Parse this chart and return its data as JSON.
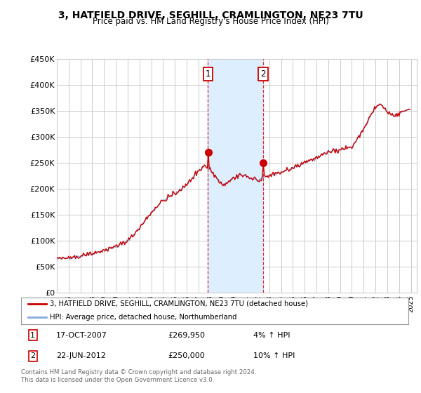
{
  "title": "3, HATFIELD DRIVE, SEGHILL, CRAMLINGTON, NE23 7TU",
  "subtitle": "Price paid vs. HM Land Registry's House Price Index (HPI)",
  "ylabel_ticks": [
    "£0",
    "£50K",
    "£100K",
    "£150K",
    "£200K",
    "£250K",
    "£300K",
    "£350K",
    "£400K",
    "£450K"
  ],
  "ylim": [
    0,
    450000
  ],
  "xlim_start": 1995.0,
  "xlim_end": 2025.5,
  "sale1_x": 2007.8,
  "sale1_y": 269950,
  "sale1_label": "17-OCT-2007",
  "sale1_price": "£269,950",
  "sale1_hpi": "4% ↑ HPI",
  "sale2_x": 2012.47,
  "sale2_y": 250000,
  "sale2_label": "22-JUN-2012",
  "sale2_price": "£250,000",
  "sale2_hpi": "10% ↑ HPI",
  "legend_property": "3, HATFIELD DRIVE, SEGHILL, CRAMLINGTON, NE23 7TU (detached house)",
  "legend_hpi": "HPI: Average price, detached house, Northumberland",
  "footnote": "Contains HM Land Registry data © Crown copyright and database right 2024.\nThis data is licensed under the Open Government Licence v3.0.",
  "line_color_property": "#cc0000",
  "line_color_hpi": "#88aadd",
  "shade_color": "#ddeeff",
  "background_color": "#ffffff",
  "grid_color": "#cccccc",
  "hpi_anchors_t": [
    1995.0,
    1996.0,
    1997.0,
    1998.0,
    1999.0,
    2000.0,
    2001.0,
    2002.0,
    2003.0,
    2004.0,
    2005.0,
    2006.0,
    2007.0,
    2007.5,
    2008.0,
    2008.5,
    2009.0,
    2009.5,
    2010.0,
    2010.5,
    2011.0,
    2011.5,
    2012.0,
    2012.5,
    2013.0,
    2014.0,
    2015.0,
    2016.0,
    2017.0,
    2018.0,
    2019.0,
    2020.0,
    2021.0,
    2022.0,
    2022.5,
    2023.0,
    2023.5,
    2024.0,
    2024.5,
    2025.0
  ],
  "hpi_anchors_v": [
    65000,
    67000,
    71000,
    76000,
    82000,
    88000,
    100000,
    125000,
    155000,
    178000,
    190000,
    208000,
    235000,
    245000,
    237000,
    222000,
    208000,
    213000,
    220000,
    228000,
    225000,
    220000,
    216000,
    220000,
    226000,
    232000,
    240000,
    250000,
    260000,
    272000,
    275000,
    280000,
    315000,
    358000,
    362000,
    348000,
    342000,
    345000,
    350000,
    355000
  ]
}
